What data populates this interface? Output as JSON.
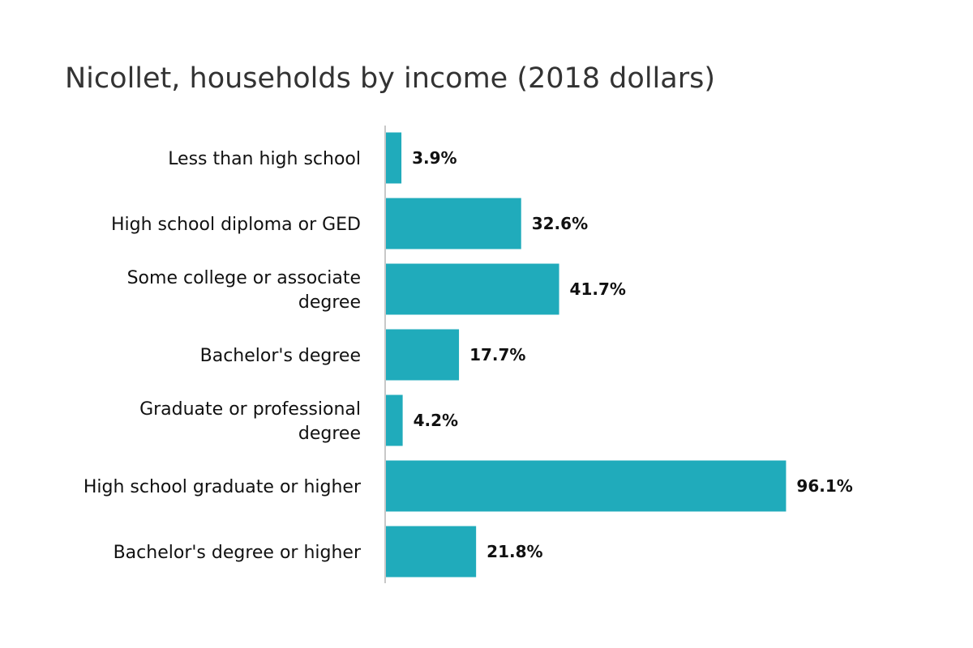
{
  "chart_data": {
    "type": "bar",
    "orientation": "horizontal",
    "title": "Nicollet, households by income (2018 dollars)",
    "categories": [
      "Less than high school",
      "High school diploma or GED",
      "Some college or associate degree",
      "Bachelor's degree",
      "Graduate or professional degree",
      "High school graduate or higher",
      "Bachelor's degree or higher"
    ],
    "category_lines": [
      [
        "Less than high school"
      ],
      [
        "High school diploma or GED"
      ],
      [
        "Some college or associate",
        "degree"
      ],
      [
        "Bachelor's degree"
      ],
      [
        "Graduate or professional",
        "degree"
      ],
      [
        "High school graduate or higher"
      ],
      [
        "Bachelor's degree or higher"
      ]
    ],
    "values": [
      3.9,
      32.6,
      41.7,
      17.7,
      4.2,
      96.1,
      21.8
    ],
    "value_labels": [
      "3.9%",
      "32.6%",
      "41.7%",
      "17.7%",
      "4.2%",
      "96.1%",
      "21.8%"
    ],
    "unit": "%",
    "xlim": [
      0,
      100
    ],
    "grid": false,
    "legend": "none",
    "colors": {
      "bar": "#20abbb",
      "axis": "#c8c8c8"
    }
  }
}
